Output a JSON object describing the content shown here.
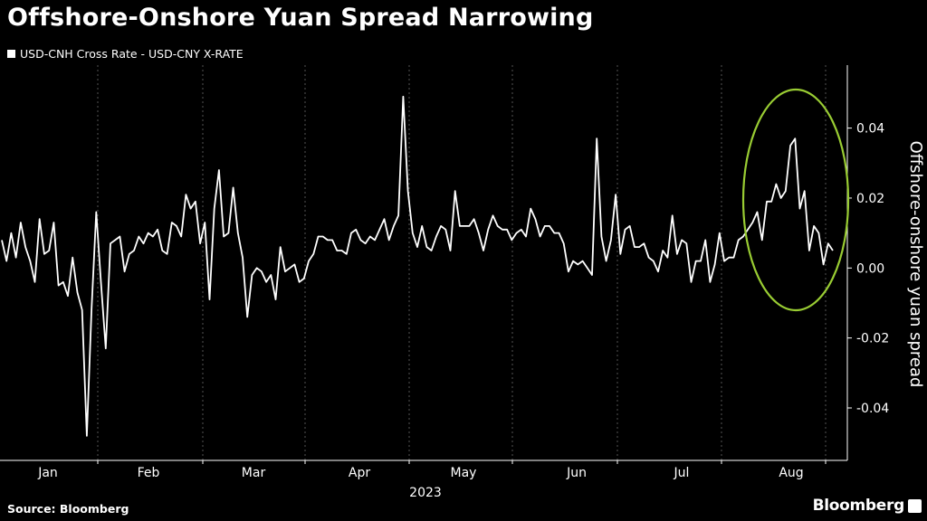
{
  "title": "Offshore-Onshore Yuan Spread Narrowing",
  "source": "Source: Bloomberg",
  "brand": "Bloomberg",
  "colors": {
    "background": "#000000",
    "line": "#ffffff",
    "grid": "#555555",
    "highlight": "#99cc33"
  },
  "chart_data": {
    "type": "line",
    "series": [
      {
        "name": "USD-CNH Cross Rate - USD-CNY X-RATE",
        "values": [
          0.008,
          0.002,
          0.01,
          0.003,
          0.013,
          0.006,
          0.002,
          -0.004,
          0.014,
          0.004,
          0.005,
          0.013,
          -0.005,
          -0.004,
          -0.008,
          0.003,
          -0.007,
          -0.012,
          -0.048,
          -0.012,
          0.016,
          -0.004,
          -0.023,
          0.007,
          0.008,
          0.009,
          -0.001,
          0.004,
          0.005,
          0.009,
          0.007,
          0.01,
          0.009,
          0.011,
          0.005,
          0.004,
          0.013,
          0.012,
          0.009,
          0.021,
          0.017,
          0.019,
          0.007,
          0.013,
          -0.009,
          0.017,
          0.028,
          0.009,
          0.01,
          0.023,
          0.01,
          0.003,
          -0.014,
          -0.002,
          0.0,
          -0.001,
          -0.004,
          -0.002,
          -0.009,
          0.006,
          -0.001,
          0.0,
          0.001,
          -0.004,
          -0.003,
          0.002,
          0.004,
          0.009,
          0.009,
          0.008,
          0.008,
          0.005,
          0.005,
          0.004,
          0.01,
          0.011,
          0.008,
          0.007,
          0.009,
          0.008,
          0.011,
          0.014,
          0.008,
          0.012,
          0.015,
          0.049,
          0.022,
          0.01,
          0.006,
          0.012,
          0.006,
          0.005,
          0.009,
          0.012,
          0.011,
          0.005,
          0.022,
          0.012,
          0.012,
          0.012,
          0.014,
          0.01,
          0.005,
          0.011,
          0.015,
          0.012,
          0.011,
          0.011,
          0.008,
          0.01,
          0.011,
          0.009,
          0.017,
          0.014,
          0.009,
          0.012,
          0.012,
          0.01,
          0.01,
          0.007,
          -0.001,
          0.002,
          0.001,
          0.002,
          0.0,
          -0.002,
          0.037,
          0.009,
          0.002,
          0.008,
          0.021,
          0.004,
          0.011,
          0.012,
          0.006,
          0.006,
          0.007,
          0.003,
          0.002,
          -0.001,
          0.005,
          0.003,
          0.015,
          0.004,
          0.008,
          0.007,
          -0.004,
          0.002,
          0.002,
          0.008,
          -0.004,
          0.001,
          0.01,
          0.002,
          0.003,
          0.003,
          0.008,
          0.009,
          0.011,
          0.013,
          0.016,
          0.008,
          0.019,
          0.019,
          0.024,
          0.02,
          0.022,
          0.035,
          0.037,
          0.017,
          0.022,
          0.005,
          0.012,
          0.01,
          0.001,
          0.007,
          0.005
        ]
      }
    ],
    "x_tick_labels": [
      "Jan",
      "Feb",
      "Mar",
      "Apr",
      "May",
      "Jun",
      "Jul",
      "Aug"
    ],
    "x_year_label": "2023",
    "xlabel": "",
    "ylabel": "Offshore-onshore yuan spread",
    "y_ticks": [
      0.04,
      0.02,
      0.0,
      -0.02,
      -0.04
    ],
    "y_tick_labels": [
      "0.04",
      "0.02",
      "0.00",
      "-0.02",
      "-0.04"
    ],
    "ylim": [
      -0.055,
      0.058
    ],
    "axis_position": "right",
    "grid": "vertical dashed",
    "legend_position": "top-left",
    "annotation": "ellipse highlighting August values"
  }
}
